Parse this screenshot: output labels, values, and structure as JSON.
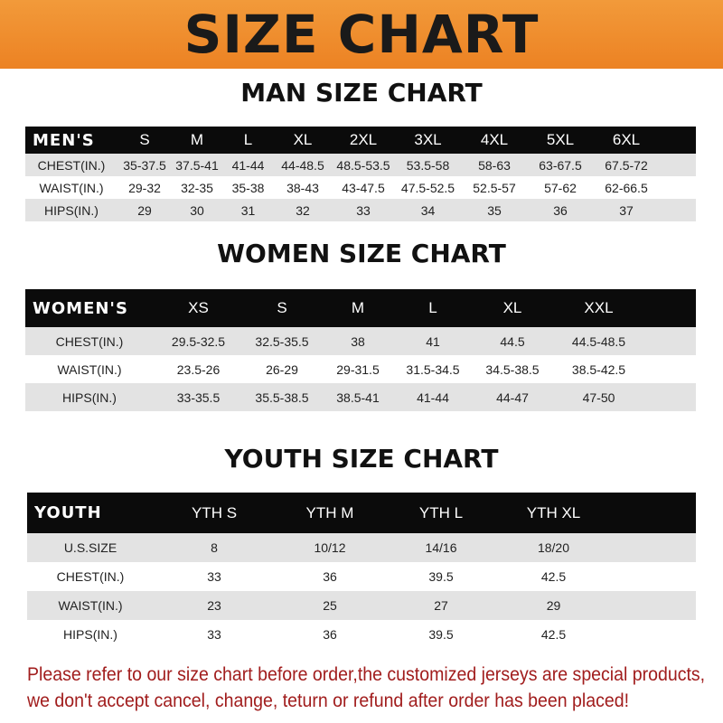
{
  "banner_title": "SIZE CHART",
  "men": {
    "title": "MAN SIZE CHART",
    "header": [
      "MEN'S",
      "S",
      "M",
      "L",
      "XL",
      "2XL",
      "3XL",
      "4XL",
      "5XL",
      "6XL"
    ],
    "rows": [
      [
        "CHEST(IN.)",
        "35-37.5",
        "37.5-41",
        "41-44",
        "44-48.5",
        "48.5-53.5",
        "53.5-58",
        "58-63",
        "63-67.5",
        "67.5-72"
      ],
      [
        "WAIST(IN.)",
        "29-32",
        "32-35",
        "35-38",
        "38-43",
        "43-47.5",
        "47.5-52.5",
        "52.5-57",
        "57-62",
        "62-66.5"
      ],
      [
        "HIPS(IN.)",
        "29",
        "30",
        "31",
        "32",
        "33",
        "34",
        "35",
        "36",
        "37"
      ]
    ]
  },
  "women": {
    "title": "WOMEN SIZE CHART",
    "header": [
      "WOMEN'S",
      "XS",
      "S",
      "M",
      "L",
      "XL",
      "XXL"
    ],
    "rows": [
      [
        "CHEST(IN.)",
        "29.5-32.5",
        "32.5-35.5",
        "38",
        "41",
        "44.5",
        "44.5-48.5"
      ],
      [
        "WAIST(IN.)",
        "23.5-26",
        "26-29",
        "29-31.5",
        "31.5-34.5",
        "34.5-38.5",
        "38.5-42.5"
      ],
      [
        "HIPS(IN.)",
        "33-35.5",
        "35.5-38.5",
        "38.5-41",
        "41-44",
        "44-47",
        "47-50"
      ]
    ]
  },
  "youth": {
    "title": "YOUTH SIZE CHART",
    "header": [
      "YOUTH",
      "YTH S",
      "YTH M",
      "YTH L",
      "YTH XL"
    ],
    "rows": [
      [
        "U.S.SIZE",
        "8",
        "10/12",
        "14/16",
        "18/20"
      ],
      [
        "CHEST(IN.)",
        "33",
        "36",
        "39.5",
        "42.5"
      ],
      [
        "WAIST(IN.)",
        "23",
        "25",
        "27",
        "29"
      ],
      [
        "HIPS(IN.)",
        "33",
        "36",
        "39.5",
        "42.5"
      ]
    ]
  },
  "notice": [
    "Please refer to our size chart before order,the customized jerseys are special products,",
    "we don't accept cancel, change, teturn or refund after order has been placed!"
  ],
  "colors": {
    "banner": "#ec8223",
    "header_row": "#0b0b0b",
    "stripe": "#e3e3e3",
    "notice_text": "#a11d1d"
  }
}
